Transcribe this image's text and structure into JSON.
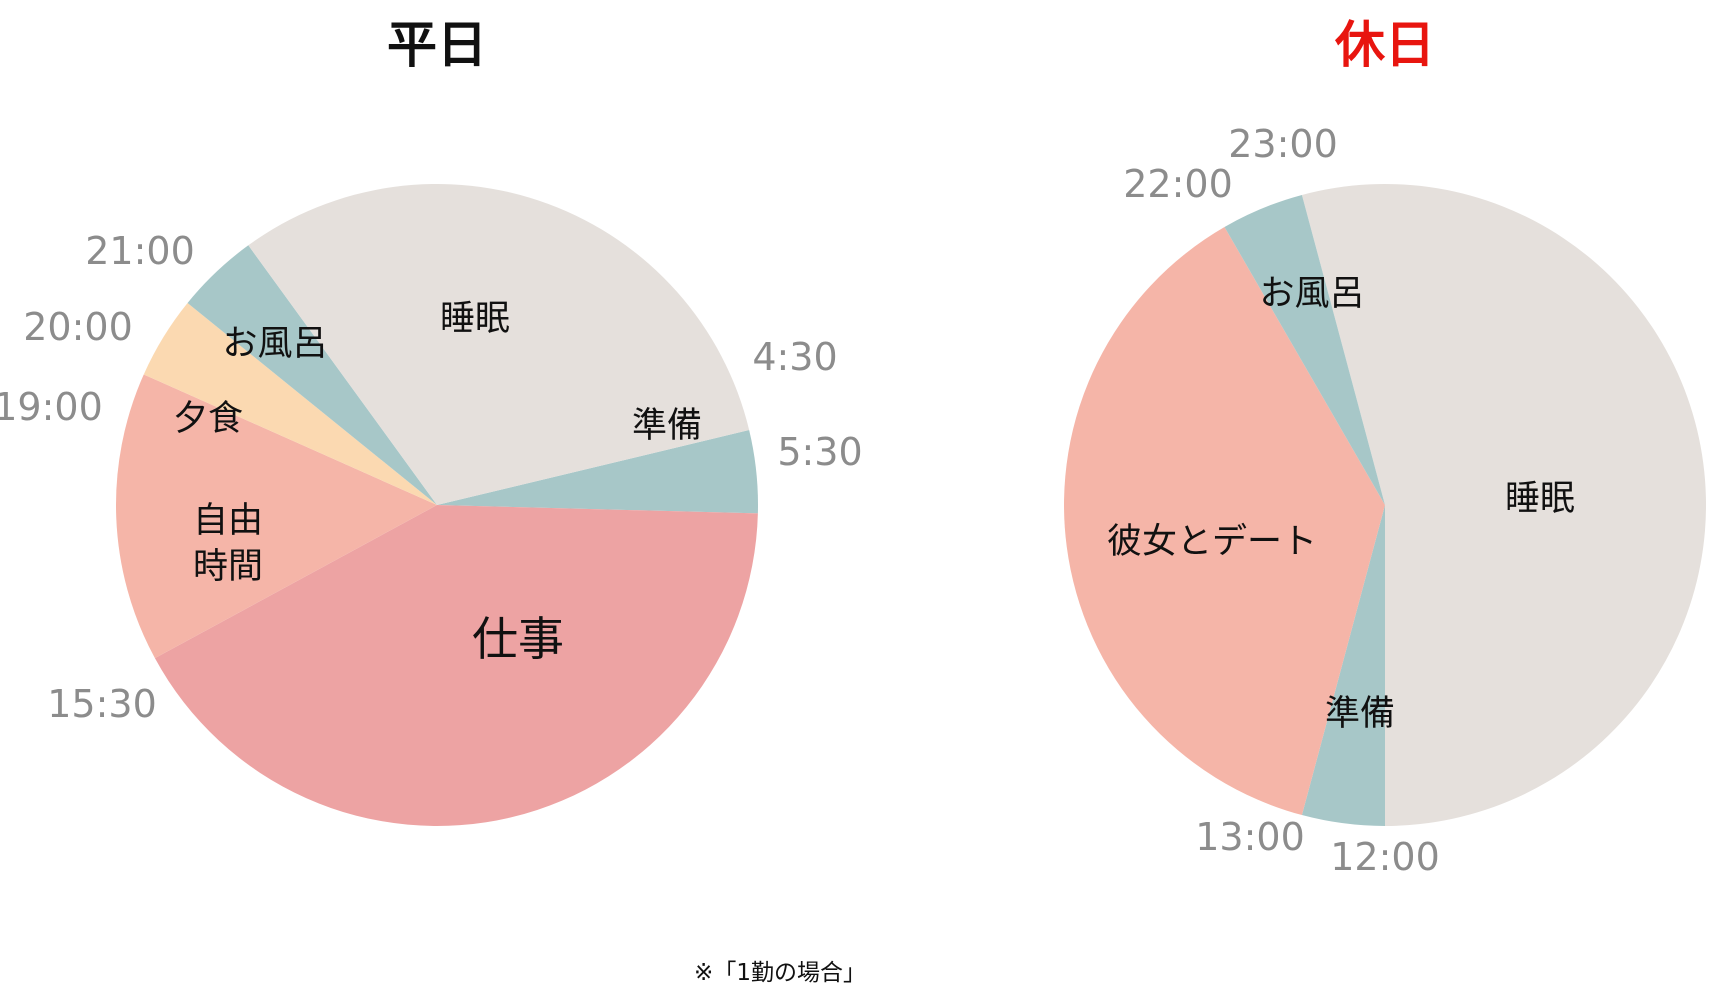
{
  "footnote": "※「1勤の場合」",
  "chart_data": [
    {
      "type": "pie",
      "title": "平日",
      "title_color": "#111111",
      "unit": "hours",
      "clock_start": "4:30",
      "slices": [
        {
          "name": "準備",
          "start": "4:30",
          "end": "5:30",
          "hours": 1.0,
          "color": "#a7c7c8"
        },
        {
          "name": "仕事",
          "start": "5:30",
          "end": "15:30",
          "hours": 10.0,
          "color": "#eda3a3"
        },
        {
          "name": "自由\n時間",
          "start": "15:30",
          "end": "19:00",
          "hours": 3.5,
          "color": "#f5b5a8"
        },
        {
          "name": "夕食",
          "start": "19:00",
          "end": "20:00",
          "hours": 1.0,
          "color": "#fbd9b1"
        },
        {
          "name": "お風呂",
          "start": "20:00",
          "end": "21:00",
          "hours": 1.0,
          "color": "#a7c7c8"
        },
        {
          "name": "睡眠",
          "start": "21:00",
          "end": "4:30",
          "hours": 7.5,
          "color": "#e5e0dc"
        }
      ],
      "time_labels": [
        "4:30",
        "5:30",
        "15:30",
        "19:00",
        "20:00",
        "21:00"
      ]
    },
    {
      "type": "pie",
      "title": "休日",
      "title_color": "#e8150f",
      "unit": "hours",
      "clock_start": "23:00",
      "slices": [
        {
          "name": "睡眠",
          "start": "23:00",
          "end": "12:00",
          "hours": 13.0,
          "color": "#e5e0dc"
        },
        {
          "name": "準備",
          "start": "12:00",
          "end": "13:00",
          "hours": 1.0,
          "color": "#a7c7c8"
        },
        {
          "name": "彼女とデート",
          "start": "13:00",
          "end": "22:00",
          "hours": 9.0,
          "color": "#f5b5a8"
        },
        {
          "name": "お風呂",
          "start": "22:00",
          "end": "23:00",
          "hours": 1.0,
          "color": "#a7c7c8"
        }
      ],
      "time_labels": [
        "12:00",
        "13:00",
        "22:00",
        "23:00"
      ]
    }
  ]
}
